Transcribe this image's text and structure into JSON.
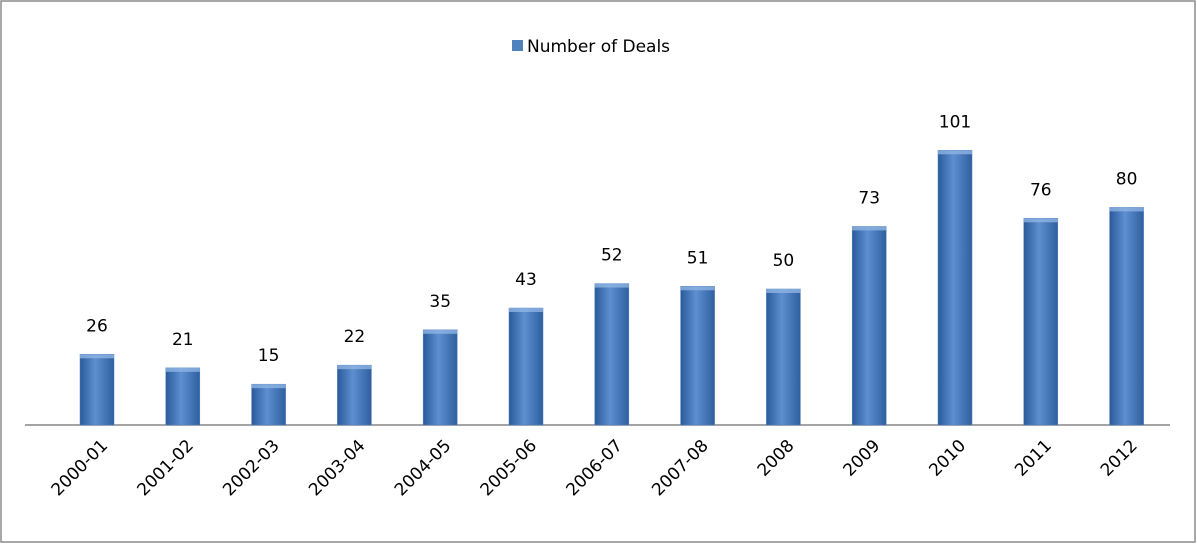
{
  "chart_data": {
    "type": "bar",
    "categories": [
      "2000-01",
      "2001-02",
      "2002-03",
      "2003-04",
      "2004-05",
      "2005-06",
      "2006-07",
      "2007-08",
      "2008",
      "2009",
      "2010",
      "2011",
      "2012"
    ],
    "series": [
      {
        "name": "Number of Deals",
        "color": "#4f81bd",
        "values": [
          26,
          21,
          15,
          22,
          35,
          43,
          52,
          51,
          50,
          73,
          101,
          76,
          80
        ]
      }
    ],
    "legend": "top"
  }
}
